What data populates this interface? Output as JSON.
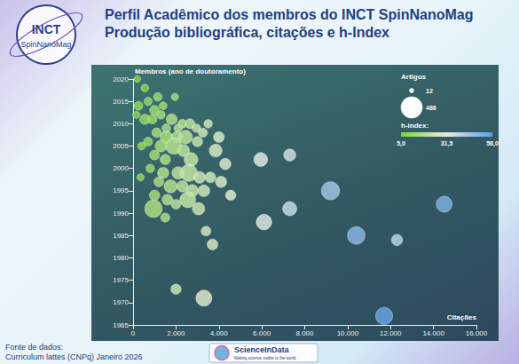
{
  "chart_data": {
    "type": "scatter",
    "title": "Perfil Acadêmico dos membros do INCT SpinNanoMag",
    "subtitle": "Produção bibliográfica, citações e h-Index",
    "x_label": "Citações",
    "y_label": "Membros (ano de doutoramento)",
    "marker": "circle",
    "grid": false,
    "xlim": [
      0,
      16000
    ],
    "xticks": [
      0,
      {
        "value": 2000,
        "label": "2.000"
      },
      {
        "value": 4000,
        "label": "4.000"
      },
      {
        "value": 6000,
        "label": "6.000"
      },
      {
        "value": 8000,
        "label": "8.000"
      },
      {
        "value": 10000,
        "label": "10.000"
      },
      {
        "value": 12000,
        "label": "12.000"
      },
      {
        "value": 14000,
        "label": "14.000"
      },
      {
        "value": 16000,
        "label": "16.000"
      }
    ],
    "ylim": [
      1965,
      2020
    ],
    "yticks": [
      1965,
      1970,
      1975,
      1980,
      1985,
      1990,
      1995,
      2000,
      2005,
      2010,
      2015,
      2020
    ],
    "x": [
      200,
      550,
      1150,
      1950,
      250,
      700,
      1000,
      1400,
      150,
      550,
      900,
      1300,
      1800,
      2300,
      2650,
      2950,
      2100,
      1100,
      1550,
      2050,
      2450,
      3000,
      3250,
      700,
      400,
      1300,
      1900,
      2350,
      3850,
      1000,
      1500,
      2700,
      4300,
      800,
      1400,
      2100,
      2600,
      3100,
      3600,
      350,
      1200,
      1750,
      2300,
      2750,
      3300,
      1000,
      1600,
      2550,
      3050,
      2000,
      950,
      1500,
      3400,
      3700,
      4550,
      4100,
      5950,
      7300,
      6100,
      7300,
      9200,
      10400,
      12300,
      14500,
      11700,
      3300,
      2000,
      1550,
      4000,
      3500
    ],
    "values": [
      2020,
      2018,
      2016,
      2016,
      2014,
      2015,
      2013,
      2014,
      2012,
      2011,
      2011,
      2012,
      2011,
      2010,
      2010,
      2009,
      2009,
      2008,
      2007,
      2007,
      2007,
      2006,
      2008,
      2006,
      2005,
      2005,
      2005,
      2004,
      2004,
      2003,
      2002,
      2002,
      2001,
      2000,
      1999,
      1999,
      1999,
      1998,
      1998,
      1998,
      1997,
      1996,
      1996,
      1995,
      1995,
      1994,
      1993,
      1993,
      1991,
      1992,
      1991,
      1989,
      1986,
      1983,
      1994,
      1997,
      2002,
      2003,
      1988,
      1991,
      1995,
      1985,
      1984,
      1992,
      1967,
      1971,
      1973,
      2009,
      2007,
      2010
    ],
    "sizes": [
      20,
      30,
      40,
      25,
      45,
      35,
      60,
      30,
      25,
      70,
      50,
      40,
      80,
      45,
      60,
      40,
      35,
      55,
      120,
      90,
      150,
      70,
      50,
      45,
      30,
      100,
      250,
      110,
      130,
      60,
      70,
      160,
      90,
      40,
      90,
      120,
      280,
      100,
      80,
      25,
      60,
      140,
      90,
      120,
      100,
      70,
      80,
      230,
      120,
      60,
      300,
      50,
      60,
      80,
      70,
      90,
      160,
      110,
      220,
      170,
      330,
      300,
      90,
      230,
      280,
      240,
      70,
      40,
      80,
      40
    ],
    "h_index": [
      6,
      8,
      12,
      14,
      9,
      10,
      12,
      13,
      7,
      11,
      12,
      14,
      17,
      18,
      20,
      22,
      19,
      14,
      16,
      18,
      20,
      22,
      24,
      11,
      9,
      15,
      18,
      20,
      26,
      13,
      16,
      22,
      28,
      12,
      17,
      20,
      22,
      24,
      25,
      9,
      15,
      18,
      20,
      22,
      24,
      14,
      17,
      22,
      23,
      19,
      16,
      16,
      25,
      26,
      29,
      27,
      33,
      36,
      34,
      38,
      45,
      50,
      40,
      52,
      56,
      28,
      24,
      15,
      27,
      25
    ],
    "size_legend": {
      "title": "Artigos",
      "values": [
        12,
        486
      ]
    },
    "colorbar": {
      "title": "h-index:",
      "range": [
        5,
        58
      ],
      "ticks": [
        {
          "value": 5,
          "label": "5,0"
        },
        {
          "value": 31.5,
          "label": "31,5"
        },
        {
          "value": 58,
          "label": "58,0"
        }
      ]
    },
    "annotations": [
      "Fonte de dados:",
      "Curriculum lattes (CNPq) Janeiro 2026"
    ],
    "logos": [
      [
        "INCT",
        "SpinNanoMag"
      ],
      [
        "ScienceInData",
        "Making science visible to the world"
      ]
    ]
  }
}
